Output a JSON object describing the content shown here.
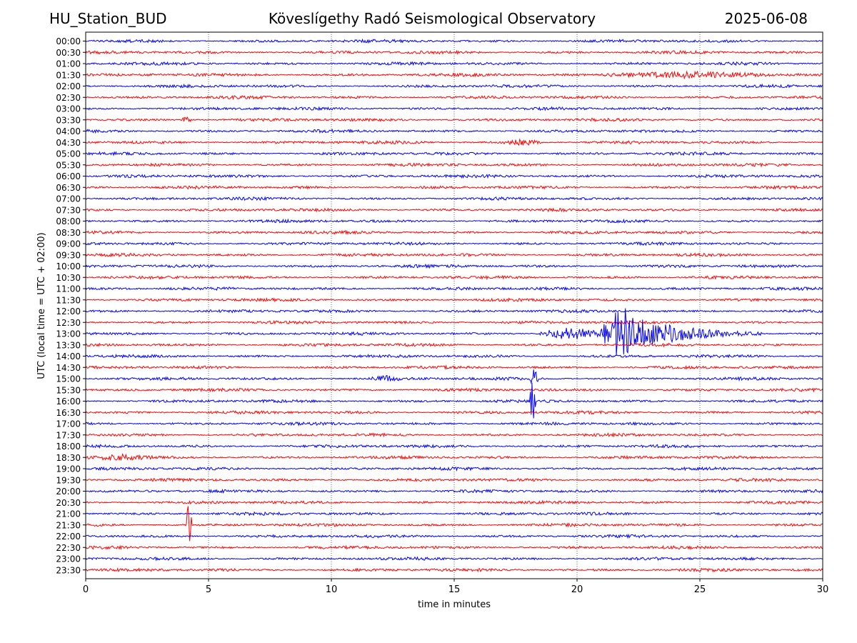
{
  "header": {
    "station": "HU_Station_BUD",
    "observatory": "Köveslígethy Radó Seismological Observatory",
    "date": "2025-06-08"
  },
  "chart_data": {
    "type": "line",
    "title": "Köveslígethy Radó Seismological Observatory",
    "xlabel": "time in minutes",
    "ylabel": "UTC (local time = UTC + 02:00)",
    "xlim": [
      0,
      30
    ],
    "xticks": [
      0,
      5,
      10,
      15,
      20,
      25,
      30
    ],
    "grid": "vertical dotted lines at x ticks",
    "colors": [
      "#0000ff",
      "#ff0000"
    ],
    "row_labels": [
      "00:00",
      "00:30",
      "01:00",
      "01:30",
      "02:00",
      "02:30",
      "03:00",
      "03:30",
      "04:00",
      "04:30",
      "05:00",
      "05:30",
      "06:00",
      "06:30",
      "07:00",
      "07:30",
      "08:00",
      "08:30",
      "09:00",
      "09:30",
      "10:00",
      "10:30",
      "11:00",
      "11:30",
      "12:00",
      "12:30",
      "13:00",
      "13:30",
      "14:00",
      "14:30",
      "15:00",
      "15:30",
      "16:00",
      "16:30",
      "17:00",
      "17:30",
      "18:00",
      "18:30",
      "19:00",
      "19:30",
      "20:00",
      "20:30",
      "21:00",
      "21:30",
      "22:00",
      "22:30",
      "23:00",
      "23:30"
    ],
    "events": [
      {
        "row": "13:00",
        "start_min": 21.0,
        "end_min": 27.5,
        "peak_min": 21.8,
        "amplitude": "large"
      },
      {
        "row": "13:00",
        "start_min": 18.5,
        "end_min": 21.0,
        "amplitude": "medium"
      },
      {
        "row": "15:00",
        "start_min": 18.1,
        "end_min": 18.4,
        "amplitude": "medium-spike"
      },
      {
        "row": "16:00",
        "start_min": 18.1,
        "end_min": 18.3,
        "amplitude": "spike"
      },
      {
        "row": "15:00",
        "start_min": 11.5,
        "end_min": 13.0,
        "amplitude": "small"
      },
      {
        "row": "03:30",
        "start_min": 3.9,
        "end_min": 4.3,
        "amplitude": "small"
      },
      {
        "row": "04:30",
        "start_min": 17.0,
        "end_min": 18.5,
        "amplitude": "small"
      },
      {
        "row": "01:30",
        "start_min": 21.0,
        "end_min": 28.0,
        "amplitude": "small"
      },
      {
        "row": "18:30",
        "start_min": 0.0,
        "end_min": 3.0,
        "amplitude": "small"
      },
      {
        "row": "21:30",
        "start_min": 4.1,
        "end_min": 4.3,
        "amplitude": "spike"
      }
    ]
  }
}
